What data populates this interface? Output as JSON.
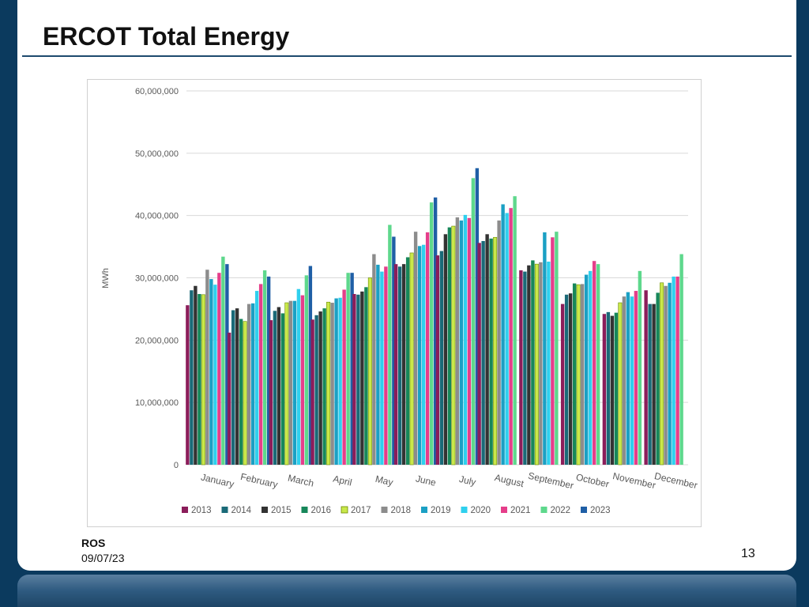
{
  "slide": {
    "title": "ERCOT Total Energy",
    "footer_org": "ROS",
    "footer_date": "09/07/23",
    "page_number": "13"
  },
  "chart_data": {
    "type": "bar",
    "title": "",
    "xlabel": "",
    "ylabel": "MWh",
    "ylim": [
      0,
      60000000
    ],
    "yticks": [
      0,
      10000000,
      20000000,
      30000000,
      40000000,
      50000000,
      60000000
    ],
    "ytick_labels": [
      "0",
      "10,000,000",
      "20,000,000",
      "30,000,000",
      "40,000,000",
      "50,000,000",
      "60,000,000"
    ],
    "grid": true,
    "legend_position": "bottom",
    "categories": [
      "January",
      "February",
      "March",
      "April",
      "May",
      "June",
      "July",
      "August",
      "September",
      "October",
      "November",
      "December"
    ],
    "series": [
      {
        "name": "2013",
        "color": "#8b1d5a",
        "values": [
          25600000,
          21200000,
          23200000,
          23300000,
          27400000,
          32200000,
          33600000,
          35600000,
          31200000,
          25800000,
          24200000,
          28000000
        ]
      },
      {
        "name": "2014",
        "color": "#1a6a78",
        "values": [
          28000000,
          24800000,
          24700000,
          24000000,
          27300000,
          31800000,
          34300000,
          35900000,
          31000000,
          27300000,
          24500000,
          25800000
        ]
      },
      {
        "name": "2015",
        "color": "#333333",
        "values": [
          28700000,
          25100000,
          25300000,
          24600000,
          27800000,
          32200000,
          37000000,
          37000000,
          32000000,
          27500000,
          23900000,
          25800000
        ]
      },
      {
        "name": "2016",
        "color": "#17875a",
        "values": [
          27400000,
          23400000,
          24300000,
          25100000,
          28500000,
          33300000,
          38100000,
          36300000,
          32800000,
          29100000,
          24400000,
          27600000
        ]
      },
      {
        "name": "2017",
        "color": "#c9e84a",
        "values": [
          27300000,
          23000000,
          26000000,
          26100000,
          30000000,
          34000000,
          38300000,
          36500000,
          32200000,
          28900000,
          26000000,
          29200000
        ]
      },
      {
        "name": "2018",
        "color": "#8c8c8c",
        "values": [
          31300000,
          25800000,
          26300000,
          26000000,
          33800000,
          37400000,
          39700000,
          39200000,
          32500000,
          29000000,
          27000000,
          28700000
        ]
      },
      {
        "name": "2019",
        "color": "#1ba0c4",
        "values": [
          29800000,
          25900000,
          26300000,
          26700000,
          32100000,
          35100000,
          39200000,
          41800000,
          37300000,
          30500000,
          27700000,
          29200000
        ]
      },
      {
        "name": "2020",
        "color": "#2fd0ee",
        "values": [
          28900000,
          27900000,
          28200000,
          26800000,
          31000000,
          35300000,
          40100000,
          40400000,
          32600000,
          31100000,
          27000000,
          30200000
        ]
      },
      {
        "name": "2021",
        "color": "#e53e8a",
        "values": [
          30800000,
          29000000,
          27200000,
          28100000,
          31800000,
          37300000,
          39600000,
          41200000,
          36500000,
          32700000,
          27900000,
          30200000
        ]
      },
      {
        "name": "2022",
        "color": "#5ed88c",
        "values": [
          33400000,
          31200000,
          30400000,
          30800000,
          38500000,
          42100000,
          46000000,
          43100000,
          37400000,
          32200000,
          31100000,
          33800000
        ]
      },
      {
        "name": "2023",
        "color": "#1f5fa6",
        "values": [
          32200000,
          30200000,
          31900000,
          30800000,
          36600000,
          42900000,
          47600000,
          null,
          null,
          null,
          null,
          null
        ]
      }
    ]
  }
}
